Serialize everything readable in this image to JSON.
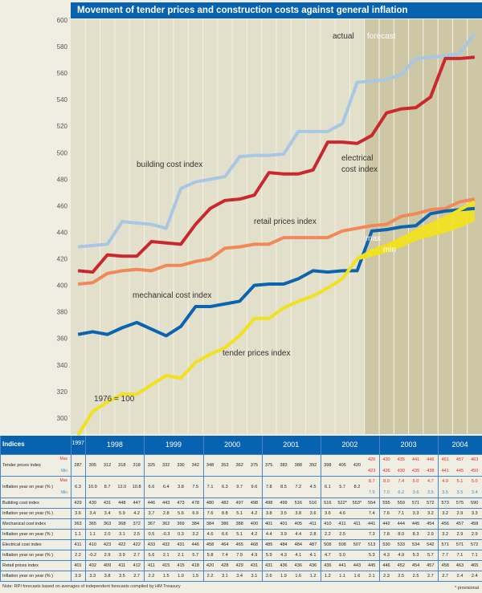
{
  "title": "Movement of tender prices and construction costs against general inflation",
  "chart_data": {
    "type": "line",
    "title": "Movement of tender prices and construction costs against general inflation",
    "ylim": [
      290,
      600
    ],
    "yticks": [
      300,
      320,
      340,
      360,
      380,
      400,
      420,
      440,
      460,
      480,
      500,
      520,
      540,
      560,
      580,
      600
    ],
    "x": [
      "1997 Q4",
      "1998 Q1",
      "1998 Q2",
      "1998 Q3",
      "1998 Q4",
      "1999 Q1",
      "1999 Q2",
      "1999 Q3",
      "1999 Q4",
      "2000 Q1",
      "2000 Q2",
      "2000 Q3",
      "2000 Q4",
      "2001 Q1",
      "2001 Q2",
      "2001 Q3",
      "2001 Q4",
      "2002 Q1",
      "2002 Q2",
      "2002 Q3",
      "2002 Q4",
      "2003 Q1",
      "2003 Q2",
      "2003 Q3",
      "2003 Q4",
      "2004 Q1",
      "2004 Q2",
      "2004 Q3"
    ],
    "forecast_start_index": 20,
    "annotations": {
      "actual": "actual",
      "forecast": "forecast",
      "base": "1976 = 100",
      "max": "max",
      "min": "min"
    },
    "series": [
      {
        "name": "building cost index",
        "color": "#a8c7e2",
        "values": [
          429,
          430,
          431,
          448,
          447,
          446,
          443,
          473,
          478,
          480,
          482,
          497,
          498,
          498,
          499,
          516,
          516,
          516,
          522,
          553,
          554,
          555,
          559,
          571,
          572,
          573,
          575,
          590
        ]
      },
      {
        "name": "electrical cost index",
        "color": "#c8282e",
        "values": [
          411,
          410,
          423,
          422,
          422,
          433,
          432,
          431,
          446,
          458,
          464,
          465,
          468,
          485,
          484,
          484,
          487,
          508,
          508,
          507,
          513,
          530,
          533,
          534,
          542,
          571,
          571,
          572
        ]
      },
      {
        "name": "retail prices index",
        "color": "#f08858",
        "values": [
          401,
          402,
          409,
          411,
          412,
          411,
          415,
          415,
          418,
          420,
          428,
          429,
          431,
          431,
          436,
          436,
          436,
          436,
          441,
          443,
          445,
          446,
          452,
          454,
          457,
          458,
          463,
          465
        ]
      },
      {
        "name": "mechanical cost index",
        "color": "#0a64b0",
        "values": [
          363,
          365,
          363,
          368,
          372,
          367,
          362,
          369,
          384,
          384,
          386,
          388,
          400,
          401,
          401,
          405,
          411,
          410,
          411,
          411,
          441,
          442,
          444,
          445,
          454,
          456,
          457,
          458
        ]
      },
      {
        "name": "tender prices index",
        "color": "#f2e21e",
        "values": [
          287,
          305,
          312,
          318,
          318,
          325,
          332,
          330,
          342,
          348,
          353,
          362,
          375,
          375,
          383,
          388,
          392,
          398,
          405,
          420,
          426,
          430,
          435,
          441,
          446,
          451,
          457,
          463
        ],
        "min_values": [
          null,
          null,
          null,
          null,
          null,
          null,
          null,
          null,
          null,
          null,
          null,
          null,
          null,
          null,
          null,
          null,
          null,
          null,
          null,
          420,
          423,
          426,
          430,
          435,
          438,
          441,
          445,
          450
        ]
      }
    ]
  },
  "table": {
    "header": "Indices",
    "years": [
      {
        "label": "1997",
        "n": 1
      },
      {
        "label": "1998",
        "n": 4
      },
      {
        "label": "1999",
        "n": 4
      },
      {
        "label": "2000",
        "n": 4
      },
      {
        "label": "2001",
        "n": 4
      },
      {
        "label": "2002",
        "n": 4
      },
      {
        "label": "2003",
        "n": 4
      },
      {
        "label": "2004",
        "n": 3
      }
    ],
    "max_label": "Max",
    "min_label": "Min",
    "rows": [
      {
        "label": "Tender prices index",
        "values": [
          "287",
          "305",
          "312",
          "318",
          "318",
          "325",
          "332",
          "330",
          "342",
          "348",
          "353",
          "362",
          "375",
          "375",
          "383",
          "388",
          "392",
          "398",
          "405",
          "420",
          "426",
          "430",
          "435",
          "441",
          "446",
          "451",
          "457",
          "463"
        ],
        "min": [
          "",
          "",
          "",
          "",
          "",
          "",
          "",
          "",
          "",
          "",
          "",
          "",
          "",
          "",
          "",
          "",
          "",
          "",
          "",
          "",
          "423",
          "426",
          "430",
          "435",
          "438",
          "441",
          "445",
          "450"
        ],
        "tall": true
      },
      {
        "label": "Inflation year on year (% )",
        "values": [
          "6.3",
          "10.9",
          "8.7",
          "12.0",
          "10.8",
          "6.6",
          "6.4",
          "3.8",
          "7.5",
          "7.1",
          "6.3",
          "9.7",
          "9.6",
          "7.8",
          "8.5",
          "7.2",
          "4.5",
          "6.1",
          "5.7",
          "8.2",
          "8.7",
          "8.0",
          "7.4",
          "5.0",
          "4.7",
          "4.9",
          "5.1",
          "5.0"
        ],
        "min": [
          "",
          "",
          "",
          "",
          "",
          "",
          "",
          "",
          "",
          "",
          "",
          "",
          "",
          "",
          "",
          "",
          "",
          "",
          "",
          "",
          "7.9",
          "7.0",
          "6.2",
          "3.6",
          "3.5",
          "3.5",
          "3.5",
          "3.4"
        ],
        "tall": true
      },
      {
        "label": "Building cost index",
        "values": [
          "429",
          "430",
          "431",
          "448",
          "447",
          "446",
          "443",
          "473",
          "478",
          "480",
          "482",
          "497",
          "498",
          "498",
          "499",
          "516",
          "516",
          "516",
          "522*",
          "553*",
          "554",
          "555",
          "559",
          "571",
          "572",
          "573",
          "575",
          "590"
        ]
      },
      {
        "label": "Inflation year on year (% )",
        "values": [
          "3.6",
          "3.4",
          "3.4",
          "5.9",
          "4.2",
          "3.7",
          "2.8",
          "5.6",
          "6.9",
          "7.6",
          "8.8",
          "5.1",
          "4.2",
          "3.8",
          "3.5",
          "3.8",
          "3.6",
          "3.6",
          "4.6",
          "",
          "7.4",
          "7.6",
          "7.1",
          "3.3",
          "3.2",
          "3.2",
          "2.9",
          "3.3"
        ]
      },
      {
        "label": "Mechanical cost index",
        "values": [
          "363",
          "365",
          "363",
          "368",
          "372",
          "367",
          "362",
          "369",
          "384",
          "384",
          "386",
          "388",
          "400",
          "401",
          "401",
          "405",
          "411",
          "410",
          "411",
          "411",
          "441",
          "442",
          "444",
          "445",
          "454",
          "456",
          "457",
          "458"
        ]
      },
      {
        "label": "Inflation year on year (% )",
        "values": [
          "1.1",
          "1.1",
          "2.0",
          "3.1",
          "2.5",
          "0.5",
          "-0.3",
          "0.3",
          "3.2",
          "4.6",
          "6.6",
          "5.1",
          "4.2",
          "4.4",
          "3.9",
          "4.4",
          "2.8",
          "2.2",
          "2.5",
          "",
          "7.3",
          "7.8",
          "8.0",
          "8.3",
          "2.9",
          "3.2",
          "2.9",
          "2.9"
        ]
      },
      {
        "label": "Electrical cost index",
        "values": [
          "411",
          "410",
          "423",
          "422",
          "422",
          "433",
          "432",
          "431",
          "446",
          "458",
          "464",
          "465",
          "468",
          "485",
          "484",
          "484",
          "487",
          "508",
          "508",
          "507",
          "513",
          "530",
          "533",
          "534",
          "542",
          "571",
          "571",
          "572"
        ]
      },
      {
        "label": "Inflation year on year (% )",
        "values": [
          "2.2",
          "-0.2",
          "2.9",
          "3.9",
          "2.7",
          "5.6",
          "2.1",
          "2.1",
          "5.7",
          "5.8",
          "7.4",
          "7.9",
          "4.9",
          "5.9",
          "4.3",
          "4.1",
          "4.1",
          "4.7",
          "5.0",
          "",
          "5.3",
          "4.3",
          "4.9",
          "5.3",
          "5.7",
          "7.7",
          "7.1",
          "7.1"
        ]
      },
      {
        "label": "Retail prices index",
        "values": [
          "401",
          "402",
          "409",
          "411",
          "412",
          "411",
          "415",
          "415",
          "418",
          "420",
          "428",
          "429",
          "431",
          "431",
          "436",
          "436",
          "436",
          "436",
          "441",
          "443",
          "445",
          "446",
          "452",
          "454",
          "457",
          "458",
          "463",
          "465"
        ]
      },
      {
        "label": "Inflation year on year (% )",
        "values": [
          "3.9",
          "3.3",
          "3.8",
          "3.5",
          "2.7",
          "2.2",
          "1.5",
          "1.0",
          "1.5",
          "2.2",
          "3.1",
          "3.4",
          "3.1",
          "2.6",
          "1.9",
          "1.6",
          "1.2",
          "1.2",
          "1.1",
          "1.6",
          "2.1",
          "2.3",
          "2.5",
          "2.5",
          "2.7",
          "2.7",
          "2.4",
          "2.4"
        ]
      }
    ],
    "note": "Note: RPI forecasts based on averages of independent forecasts compiled by HM Treasury",
    "provisional": "* provisional"
  },
  "colors": {
    "max": "#d8302c",
    "min": "#3a8fd0",
    "header": "#0762b0",
    "plot_bg": "#e2dfcb",
    "forecast_bg": "#cdc7a6"
  }
}
